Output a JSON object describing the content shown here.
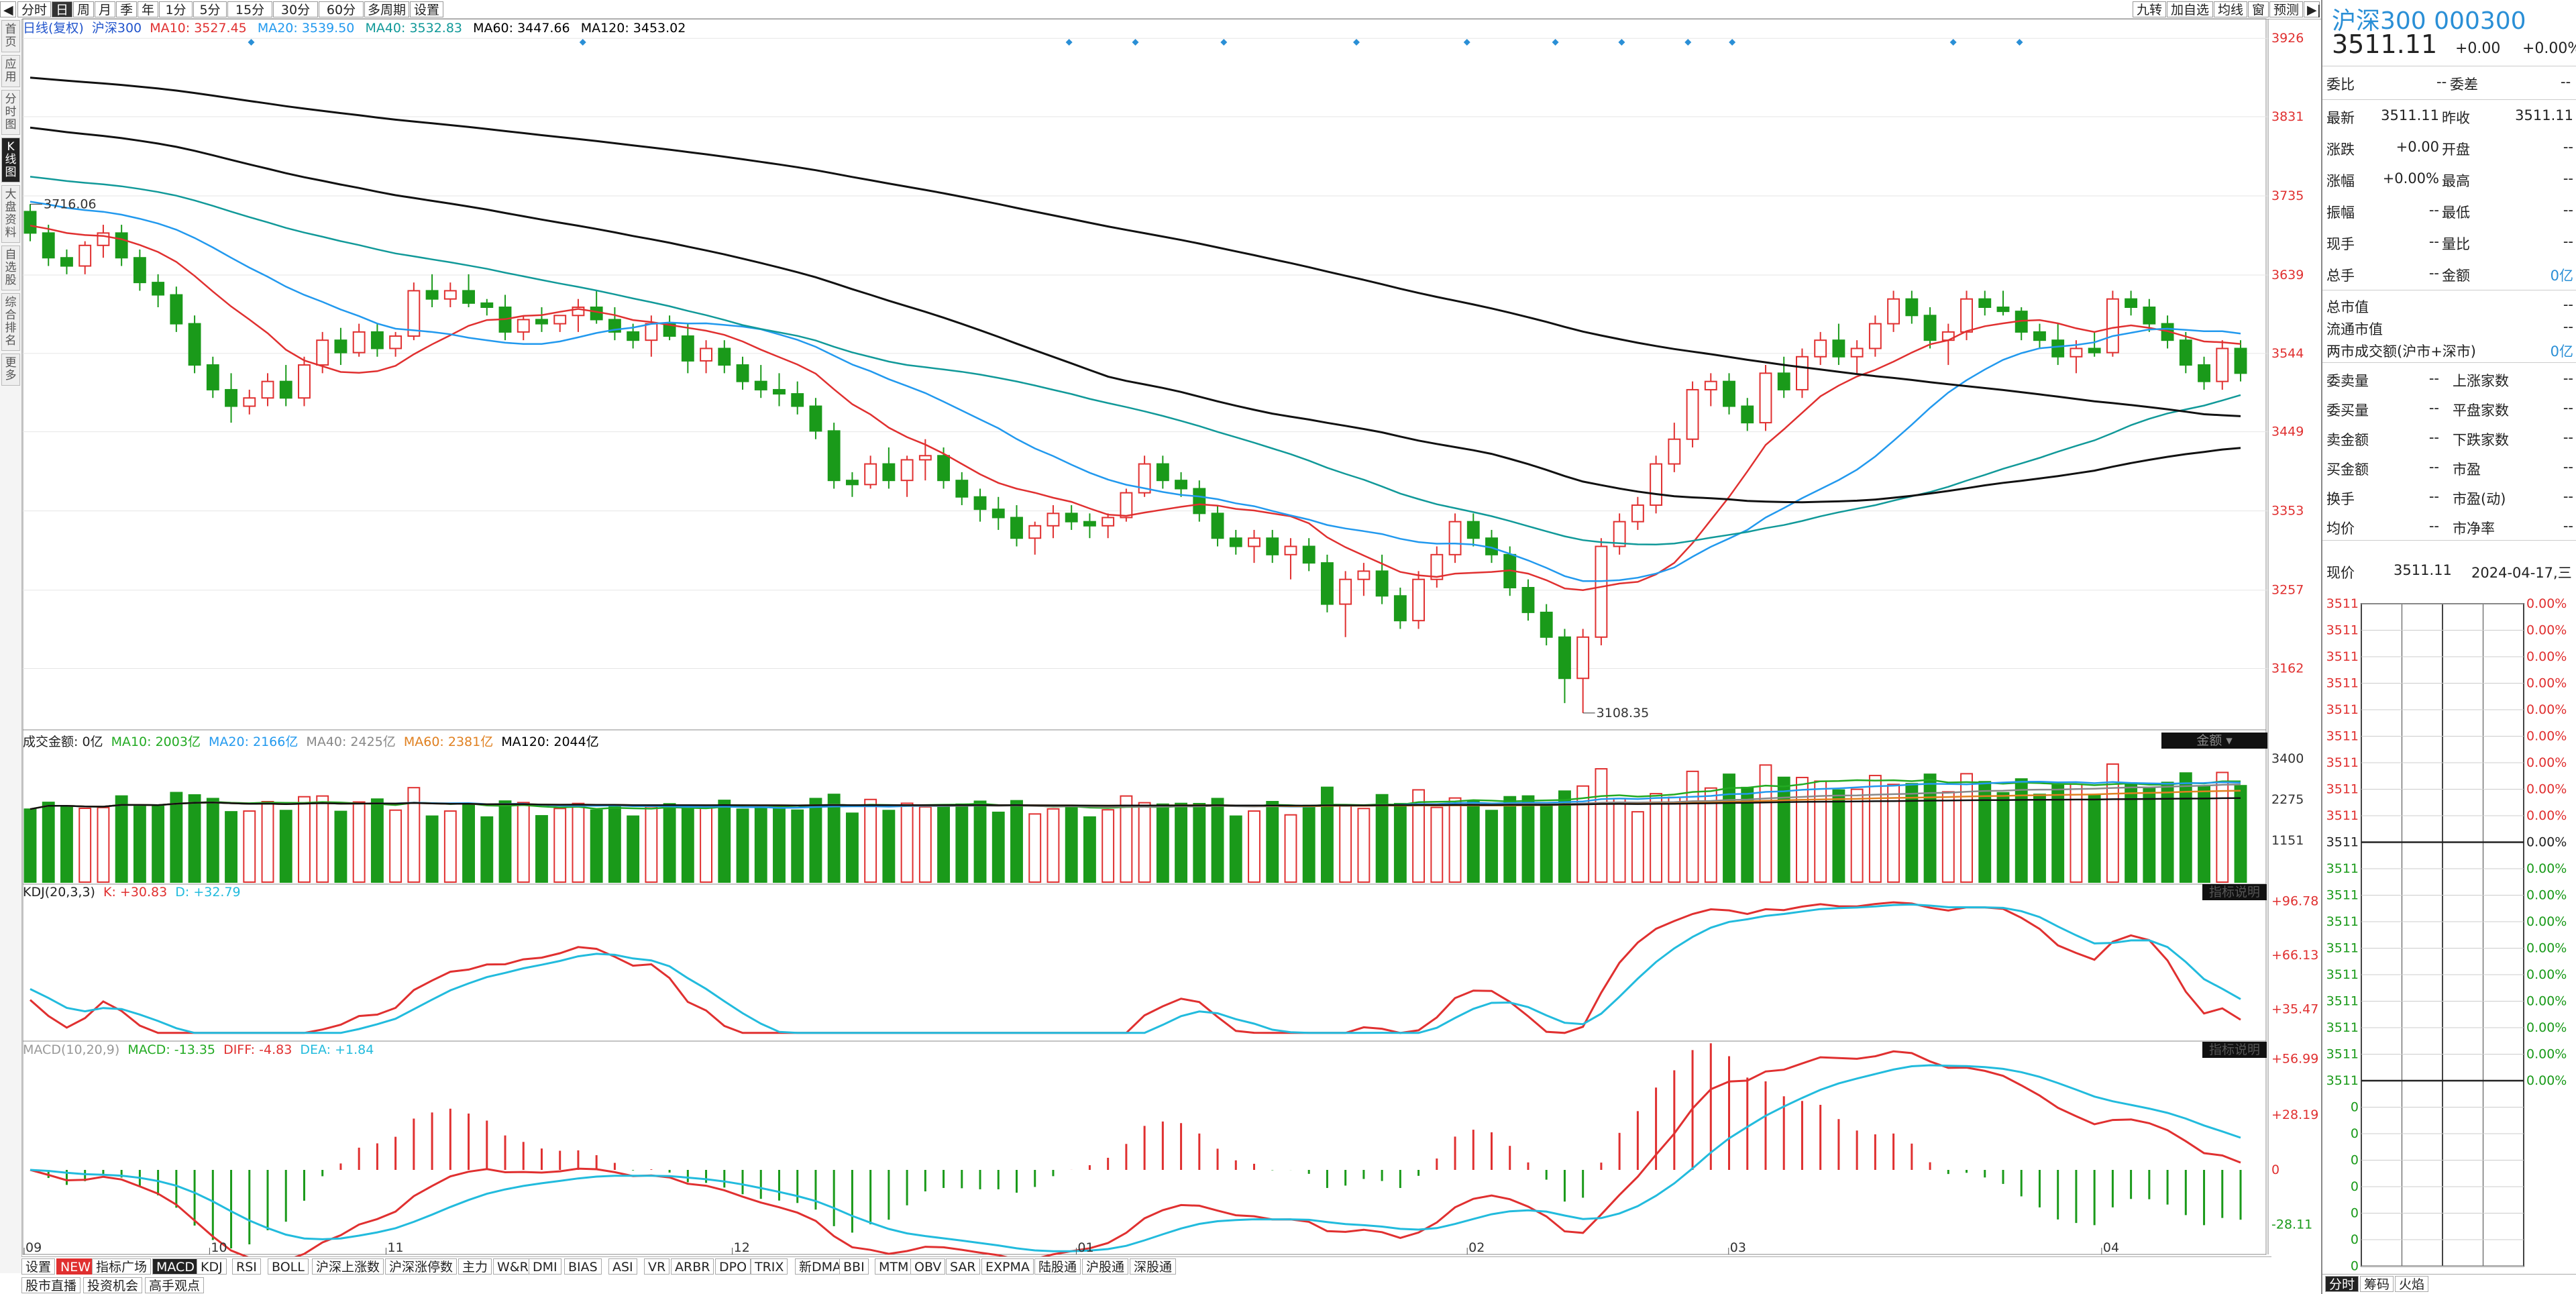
{
  "toolbar": {
    "period_buttons": [
      "分时",
      "日",
      "周",
      "月",
      "季",
      "年",
      "1分",
      "5分",
      "15分",
      "30分",
      "60分",
      "多周期",
      "设置"
    ],
    "selected": "日",
    "right_buttons": [
      "九转",
      "加自选",
      "均线",
      "窗",
      "预测"
    ]
  },
  "left_tabs": [
    "首页",
    "应用",
    "分时图",
    "K线图",
    "大盘资料",
    "自选股",
    "综合排名",
    "更多"
  ],
  "left_tabs_selected": "K线图",
  "main_legend": {
    "name": "日线(复权)",
    "index": "沪深300",
    "ma10": "MA10: 3527.45",
    "ma20": "MA20: 3539.50",
    "ma40": "MA40: 3532.83",
    "ma60": "MA60: 3447.66",
    "ma120": "MA120: 3453.02"
  },
  "volume_legend": {
    "name": "成交金额: 0亿",
    "ma10": "MA10: 2003亿",
    "ma20": "MA20: 2166亿",
    "ma40": "MA40: 2425亿",
    "ma60": "MA60: 2381亿",
    "ma120": "MA120: 2044亿",
    "tag": "金额"
  },
  "kdj_legend": {
    "name": "KDJ(20,3,3)",
    "k": "K: +30.83",
    "d": "D: +32.79",
    "tag": "指标说明"
  },
  "macd_legend": {
    "name": "MACD(10,20,9)",
    "macd": "MACD: -13.35",
    "diff": "DIFF: -4.83",
    "dea": "DEA: +1.84",
    "tag": "指标说明"
  },
  "annotations": {
    "high": "3716.06",
    "low": "3108.35"
  },
  "price_axis": [
    "3926",
    "3831",
    "3735",
    "3639",
    "3544",
    "3449",
    "3353",
    "3257",
    "3162"
  ],
  "volume_axis": [
    "3400",
    "2275",
    "1151"
  ],
  "kdj_axis": [
    "+96.78",
    "+66.13",
    "+35.47"
  ],
  "macd_axis": [
    "+56.99",
    "+28.19",
    "0",
    "-28.11"
  ],
  "time_axis": [
    "09",
    "10",
    "11",
    "12",
    "01",
    "02",
    "03",
    "04"
  ],
  "indicator_tabs": [
    "设置",
    "NEW",
    "指标广场",
    "MACD",
    "KDJ",
    "RSI",
    "BOLL",
    "沪深上涨数",
    "沪深涨停数",
    "主力",
    "W&R",
    "DMI",
    "BIAS",
    "ASI",
    "VR",
    "ARBR",
    "DPO",
    "TRIX",
    "新DMA",
    "BBI",
    "MTM",
    "OBV",
    "SAR",
    "EXPMA",
    "陆股通",
    "沪股通",
    "深股通"
  ],
  "indicator_selected": "MACD",
  "bottom_links": [
    "股市直播",
    "投资机会",
    "高手观点"
  ],
  "right_panel": {
    "title": "沪深300 000300",
    "price": "3511.11",
    "change": "+0.00",
    "change_pct": "+0.00%",
    "weibi_label": "委比",
    "weibi_val": "--",
    "weicha_label": "委差",
    "weicha_val": "--",
    "quote_rows": [
      {
        "l1": "最新",
        "v1": "3511.11",
        "l2": "昨收",
        "v2": "3511.11"
      },
      {
        "l1": "涨跌",
        "v1": "+0.00",
        "l2": "开盘",
        "v2": "--"
      },
      {
        "l1": "涨幅",
        "v1": "+0.00%",
        "l2": "最高",
        "v2": "--"
      },
      {
        "l1": "振幅",
        "v1": "--",
        "l2": "最低",
        "v2": "--"
      },
      {
        "l1": "现手",
        "v1": "--",
        "l2": "量比",
        "v2": "--"
      },
      {
        "l1": "总手",
        "v1": "--",
        "l2": "金额",
        "v2": "0亿"
      }
    ],
    "cap_rows": [
      {
        "l": "总市值",
        "v": "--"
      },
      {
        "l": "流通市值",
        "v": "--"
      },
      {
        "l": "两市成交额(沪市+深市)",
        "v": "0亿"
      }
    ],
    "market_rows": [
      {
        "l1": "委卖量",
        "v1": "--",
        "l2": "上涨家数",
        "v2": "--"
      },
      {
        "l1": "委买量",
        "v1": "--",
        "l2": "平盘家数",
        "v2": "--"
      },
      {
        "l1": "卖金额",
        "v1": "--",
        "l2": "下跌家数",
        "v2": "--"
      },
      {
        "l1": "买金额",
        "v1": "--",
        "l2": "市盈",
        "v2": "--"
      },
      {
        "l1": "换手",
        "v1": "--",
        "l2": "市盈(动)",
        "v2": "--"
      },
      {
        "l1": "均价",
        "v1": "--",
        "l2": "市净率",
        "v2": "--"
      }
    ],
    "now_label": "现价",
    "now_price": "3511.11",
    "now_date": "2024-04-17,三",
    "tick_left": [
      "3511",
      "3511",
      "3511",
      "3511",
      "3511",
      "3511",
      "3511",
      "3511",
      "3511",
      "3511",
      "3511",
      "3511",
      "3511",
      "3511",
      "3511",
      "3511",
      "3511",
      "3511",
      "3511",
      "0",
      "0",
      "0",
      "0",
      "0",
      "0",
      "0"
    ],
    "tick_right": [
      "0.00%",
      "0.00%",
      "0.00%",
      "0.00%",
      "0.00%",
      "0.00%",
      "0.00%",
      "0.00%",
      "0.00%",
      "0.00%",
      "0.00%",
      "0.00%",
      "0.00%",
      "0.00%",
      "0.00%",
      "0.00%",
      "0.00%",
      "0.00%",
      "0.00%"
    ],
    "bottom_tabs": [
      "分时",
      "筹码",
      "火焰"
    ]
  },
  "chart_data": {
    "type": "candlestick",
    "title": "沪深300 日线(复权)",
    "x_months": [
      "09",
      "10",
      "11",
      "12",
      "01",
      "02",
      "03",
      "04"
    ],
    "ylim": [
      3108,
      3926
    ],
    "ohlc_note": "approximate daily candles read from gridlines",
    "candles": [
      [
        3716,
        3725,
        3680,
        3690
      ],
      [
        3690,
        3700,
        3650,
        3660
      ],
      [
        3660,
        3670,
        3640,
        3650
      ],
      [
        3650,
        3680,
        3640,
        3675
      ],
      [
        3675,
        3700,
        3660,
        3690
      ],
      [
        3690,
        3700,
        3650,
        3660
      ],
      [
        3660,
        3670,
        3620,
        3630
      ],
      [
        3630,
        3640,
        3600,
        3615
      ],
      [
        3615,
        3625,
        3570,
        3580
      ],
      [
        3580,
        3590,
        3520,
        3530
      ],
      [
        3530,
        3540,
        3490,
        3500
      ],
      [
        3500,
        3520,
        3460,
        3480
      ],
      [
        3480,
        3500,
        3470,
        3490
      ],
      [
        3490,
        3520,
        3480,
        3510
      ],
      [
        3510,
        3530,
        3480,
        3490
      ],
      [
        3490,
        3540,
        3480,
        3530
      ],
      [
        3530,
        3570,
        3520,
        3560
      ],
      [
        3560,
        3575,
        3530,
        3545
      ],
      [
        3545,
        3580,
        3540,
        3570
      ],
      [
        3570,
        3580,
        3540,
        3550
      ],
      [
        3550,
        3570,
        3540,
        3565
      ],
      [
        3565,
        3630,
        3560,
        3620
      ],
      [
        3620,
        3640,
        3600,
        3610
      ],
      [
        3610,
        3630,
        3600,
        3620
      ],
      [
        3620,
        3640,
        3600,
        3605
      ],
      [
        3605,
        3610,
        3590,
        3600
      ],
      [
        3600,
        3615,
        3560,
        3570
      ],
      [
        3570,
        3590,
        3560,
        3585
      ],
      [
        3585,
        3600,
        3570,
        3580
      ],
      [
        3580,
        3590,
        3570,
        3590
      ],
      [
        3590,
        3610,
        3570,
        3600
      ],
      [
        3600,
        3620,
        3580,
        3585
      ],
      [
        3585,
        3600,
        3560,
        3570
      ],
      [
        3570,
        3580,
        3550,
        3560
      ],
      [
        3560,
        3590,
        3540,
        3580
      ],
      [
        3580,
        3590,
        3560,
        3565
      ],
      [
        3565,
        3580,
        3520,
        3535
      ],
      [
        3535,
        3560,
        3520,
        3550
      ],
      [
        3550,
        3560,
        3520,
        3530
      ],
      [
        3530,
        3540,
        3500,
        3510
      ],
      [
        3510,
        3530,
        3490,
        3500
      ],
      [
        3500,
        3520,
        3480,
        3495
      ],
      [
        3495,
        3510,
        3470,
        3480
      ],
      [
        3480,
        3490,
        3440,
        3450
      ],
      [
        3450,
        3460,
        3380,
        3390
      ],
      [
        3390,
        3400,
        3370,
        3385
      ],
      [
        3385,
        3420,
        3380,
        3410
      ],
      [
        3410,
        3430,
        3380,
        3390
      ],
      [
        3390,
        3420,
        3370,
        3415
      ],
      [
        3415,
        3440,
        3390,
        3420
      ],
      [
        3420,
        3430,
        3380,
        3390
      ],
      [
        3390,
        3400,
        3360,
        3370
      ],
      [
        3370,
        3380,
        3340,
        3355
      ],
      [
        3355,
        3370,
        3330,
        3345
      ],
      [
        3345,
        3360,
        3310,
        3320
      ],
      [
        3320,
        3340,
        3300,
        3335
      ],
      [
        3335,
        3360,
        3320,
        3350
      ],
      [
        3350,
        3360,
        3330,
        3340
      ],
      [
        3340,
        3350,
        3320,
        3335
      ],
      [
        3335,
        3350,
        3320,
        3345
      ],
      [
        3345,
        3380,
        3340,
        3375
      ],
      [
        3375,
        3420,
        3370,
        3410
      ],
      [
        3410,
        3420,
        3380,
        3390
      ],
      [
        3390,
        3400,
        3370,
        3380
      ],
      [
        3380,
        3390,
        3340,
        3350
      ],
      [
        3350,
        3360,
        3310,
        3320
      ],
      [
        3320,
        3330,
        3300,
        3310
      ],
      [
        3310,
        3330,
        3290,
        3320
      ],
      [
        3320,
        3330,
        3290,
        3300
      ],
      [
        3300,
        3320,
        3270,
        3310
      ],
      [
        3310,
        3320,
        3280,
        3290
      ],
      [
        3290,
        3300,
        3230,
        3240
      ],
      [
        3240,
        3280,
        3200,
        3270
      ],
      [
        3270,
        3290,
        3250,
        3280
      ],
      [
        3280,
        3300,
        3240,
        3250
      ],
      [
        3250,
        3260,
        3210,
        3220
      ],
      [
        3220,
        3280,
        3210,
        3270
      ],
      [
        3270,
        3310,
        3260,
        3300
      ],
      [
        3300,
        3350,
        3290,
        3340
      ],
      [
        3340,
        3350,
        3310,
        3320
      ],
      [
        3320,
        3330,
        3290,
        3300
      ],
      [
        3300,
        3310,
        3250,
        3260
      ],
      [
        3260,
        3270,
        3220,
        3230
      ],
      [
        3230,
        3240,
        3190,
        3200
      ],
      [
        3200,
        3210,
        3120,
        3150
      ],
      [
        3150,
        3210,
        3108,
        3200
      ],
      [
        3200,
        3320,
        3190,
        3310
      ],
      [
        3310,
        3350,
        3300,
        3340
      ],
      [
        3340,
        3370,
        3330,
        3360
      ],
      [
        3360,
        3420,
        3350,
        3410
      ],
      [
        3410,
        3460,
        3400,
        3440
      ],
      [
        3440,
        3510,
        3430,
        3500
      ],
      [
        3500,
        3520,
        3480,
        3510
      ],
      [
        3510,
        3520,
        3470,
        3480
      ],
      [
        3480,
        3490,
        3450,
        3460
      ],
      [
        3460,
        3530,
        3450,
        3520
      ],
      [
        3520,
        3540,
        3490,
        3500
      ],
      [
        3500,
        3550,
        3490,
        3540
      ],
      [
        3540,
        3570,
        3530,
        3560
      ],
      [
        3560,
        3580,
        3530,
        3540
      ],
      [
        3540,
        3560,
        3520,
        3550
      ],
      [
        3550,
        3590,
        3540,
        3580
      ],
      [
        3580,
        3620,
        3570,
        3610
      ],
      [
        3610,
        3620,
        3580,
        3590
      ],
      [
        3590,
        3600,
        3550,
        3560
      ],
      [
        3560,
        3580,
        3530,
        3570
      ],
      [
        3570,
        3620,
        3560,
        3610
      ],
      [
        3610,
        3620,
        3590,
        3600
      ],
      [
        3600,
        3620,
        3590,
        3595
      ],
      [
        3595,
        3600,
        3560,
        3570
      ],
      [
        3570,
        3580,
        3550,
        3560
      ],
      [
        3560,
        3580,
        3530,
        3540
      ],
      [
        3540,
        3560,
        3520,
        3550
      ],
      [
        3550,
        3570,
        3540,
        3545
      ],
      [
        3545,
        3620,
        3540,
        3610
      ],
      [
        3610,
        3620,
        3590,
        3600
      ],
      [
        3600,
        3610,
        3570,
        3580
      ],
      [
        3580,
        3590,
        3550,
        3560
      ],
      [
        3560,
        3570,
        3520,
        3530
      ],
      [
        3530,
        3540,
        3500,
        3510
      ],
      [
        3510,
        3560,
        3500,
        3550
      ],
      [
        3550,
        3560,
        3510,
        3520
      ]
    ]
  }
}
